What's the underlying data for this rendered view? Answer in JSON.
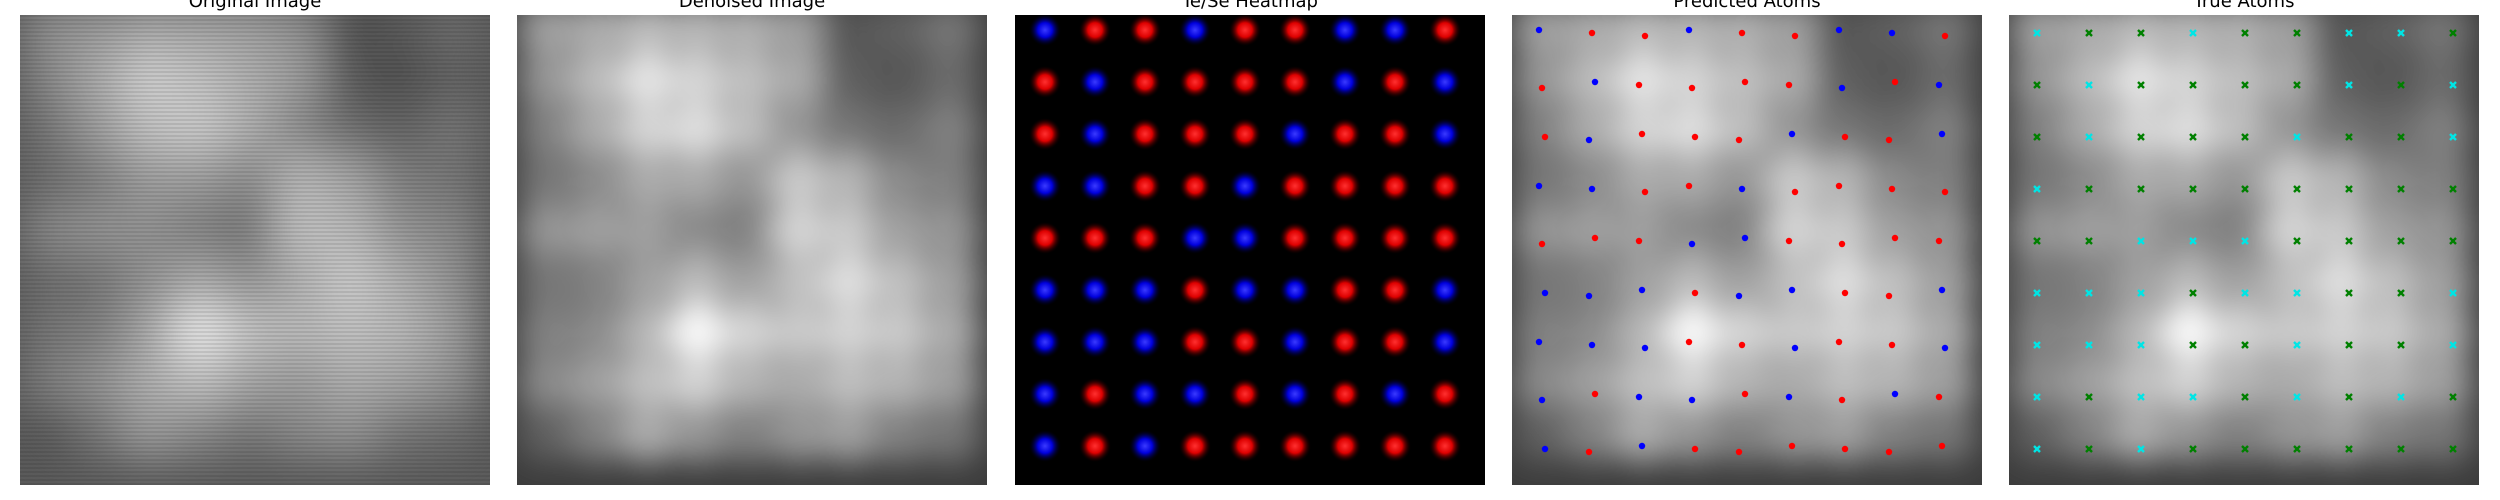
{
  "panels": [
    {
      "id": "original",
      "title": "Original Image"
    },
    {
      "id": "denoised",
      "title": "Denoised Image"
    },
    {
      "id": "heatmap",
      "title": "Te/Se Heatmap"
    },
    {
      "id": "predicted",
      "title": "Predicted Atoms"
    },
    {
      "id": "true",
      "title": "True Atoms"
    }
  ],
  "colors": {
    "te_atom": "#ff0000",
    "se_atom": "#0000ff",
    "true_cyan": "#00e5e5",
    "true_green": "#008000",
    "heatmap_background": "#000000"
  },
  "lattice": {
    "heatmap_types": [
      [
        "se",
        "te",
        "te",
        "se",
        "te",
        "te",
        "se",
        "se",
        "te"
      ],
      [
        "te",
        "se",
        "te",
        "te",
        "te",
        "te",
        "se",
        "te",
        "se"
      ],
      [
        "te",
        "se",
        "te",
        "te",
        "te",
        "se",
        "te",
        "te",
        "se"
      ],
      [
        "se",
        "se",
        "te",
        "te",
        "se",
        "te",
        "te",
        "te",
        "te"
      ],
      [
        "te",
        "te",
        "te",
        "se",
        "se",
        "te",
        "te",
        "te",
        "te"
      ],
      [
        "se",
        "se",
        "se",
        "te",
        "se",
        "se",
        "te",
        "te",
        "se"
      ],
      [
        "se",
        "se",
        "se",
        "te",
        "te",
        "se",
        "te",
        "te",
        "se"
      ],
      [
        "se",
        "te",
        "se",
        "se",
        "te",
        "se",
        "te",
        "se",
        "te"
      ],
      [
        "se",
        "te",
        "se",
        "te",
        "te",
        "te",
        "te",
        "te",
        "te"
      ]
    ],
    "predicted_types": [
      [
        "se",
        "te",
        "te",
        "se",
        "te",
        "te",
        "se",
        "se",
        "te"
      ],
      [
        "te",
        "se",
        "te",
        "te",
        "te",
        "te",
        "se",
        "te",
        "se"
      ],
      [
        "te",
        "se",
        "te",
        "te",
        "te",
        "se",
        "te",
        "te",
        "se"
      ],
      [
        "se",
        "se",
        "te",
        "te",
        "se",
        "te",
        "te",
        "te",
        "te"
      ],
      [
        "te",
        "te",
        "te",
        "se",
        "se",
        "te",
        "te",
        "te",
        "te"
      ],
      [
        "se",
        "se",
        "se",
        "te",
        "se",
        "se",
        "te",
        "te",
        "se"
      ],
      [
        "se",
        "se",
        "se",
        "te",
        "te",
        "se",
        "te",
        "te",
        "se"
      ],
      [
        "se",
        "te",
        "se",
        "se",
        "te",
        "se",
        "te",
        "se",
        "te"
      ],
      [
        "se",
        "te",
        "se",
        "te",
        "te",
        "te",
        "te",
        "te",
        "te"
      ]
    ],
    "true_types": [
      [
        "c",
        "g",
        "g",
        "c",
        "g",
        "g",
        "c",
        "c",
        "g"
      ],
      [
        "g",
        "c",
        "g",
        "g",
        "g",
        "g",
        "c",
        "g",
        "c"
      ],
      [
        "g",
        "c",
        "g",
        "g",
        "g",
        "c",
        "g",
        "g",
        "c"
      ],
      [
        "c",
        "g",
        "g",
        "g",
        "g",
        "g",
        "g",
        "g",
        "g"
      ],
      [
        "g",
        "g",
        "c",
        "c",
        "c",
        "g",
        "g",
        "g",
        "g"
      ],
      [
        "c",
        "c",
        "c",
        "g",
        "c",
        "c",
        "g",
        "g",
        "c"
      ],
      [
        "c",
        "c",
        "c",
        "g",
        "g",
        "c",
        "g",
        "g",
        "c"
      ],
      [
        "c",
        "g",
        "c",
        "c",
        "g",
        "c",
        "g",
        "c",
        "g"
      ],
      [
        "c",
        "g",
        "c",
        "g",
        "g",
        "g",
        "g",
        "g",
        "g"
      ]
    ]
  }
}
